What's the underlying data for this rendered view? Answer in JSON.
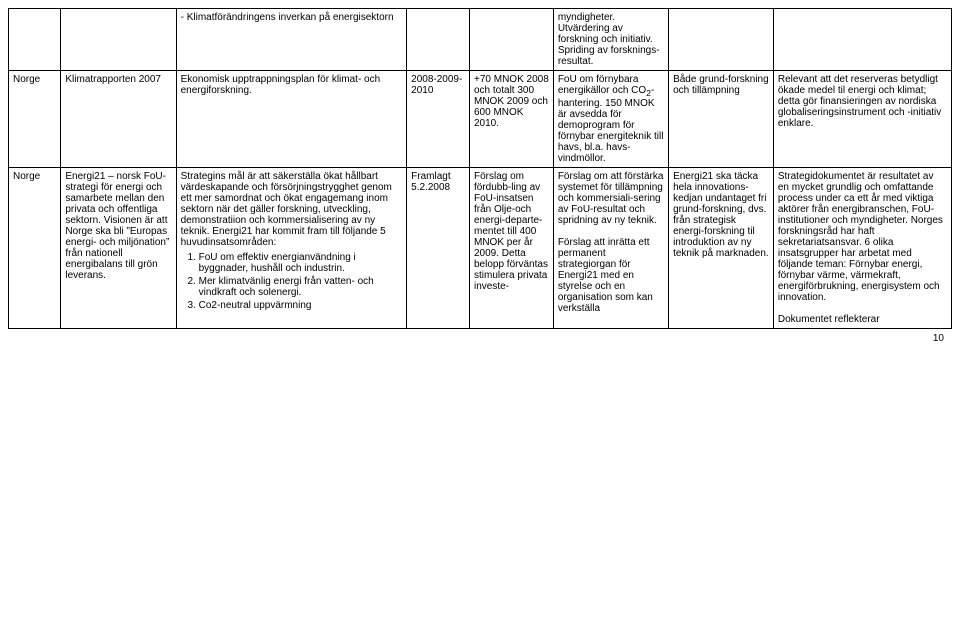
{
  "columns": {
    "c1_width": "5%",
    "c2_width": "11%",
    "c3_width": "22%",
    "c4_width": "6%",
    "c5_width": "8%",
    "c6_width": "11%",
    "c7_width": "10%",
    "c8_width": "17%"
  },
  "row0": {
    "c3": "- Klimatförändringens inverkan på energisektorn",
    "c6": "myndigheter. Utvärdering av forskning och initiativ. Spriding av forsknings-resultat."
  },
  "row1": {
    "c1": "Norge",
    "c2": "Klimatrapporten 2007",
    "c3": "Ekonomisk upptrappningsplan för klimat- och energiforskning.",
    "c4": "2008-2009-2010",
    "c5": "+70 MNOK 2008 och totalt 300 MNOK 2009 och 600 MNOK 2010.",
    "c6_html": "FoU om förnybara energikällor och CO<sub>2</sub>-hantering. 150 MNOK är avsedda för demoprogram för förnybar energiteknik till havs, bl.a. havs-vindmöllor.",
    "c7": "Både grund-forskning och tillämpning",
    "c8": "Relevant att det reserveras betydligt ökade medel til energi och klimat; detta gör finansieringen av nordiska globaliseringsinstrument och -initiativ enklare."
  },
  "row2": {
    "c1": "Norge",
    "c2": "Energi21 – norsk FoU-strategi för energi och samarbete mellan den privata och offentliga sektorn. Visionen är att Norge ska bli ”Europas energi- och miljönation” från nationell energibalans till grön leverans.",
    "c3_intro": "Strategins mål är att säkerställa ökat hållbart värdeskapande och försörjningstrygghet genom ett mer samordnat och ökat engagemang inom sektorn när det gäller forskning, utveckling, demonstratiion och kommersialisering av ny teknik. Energi21 har kommit fram till följande 5 huvudinsatsområden:",
    "c3_li1": "FoU om effektiv energianvändning i byggnader, hushåll och industrin.",
    "c3_li2": "Mer klimatvänlig energi från vatten- och vindkraft och solenergi.",
    "c3_li3": "Co2-neutral uppvärmning",
    "c4": "Framlagt 5.2.2008",
    "c5": "Förslag om fördubb-ling av FoU-insatsen från Olje-och energi-departe-mentet till 400 MNOK per år 2009. Detta belopp förväntas stimulera privata investe-",
    "c6": "Förslag om att förstärka systemet för tillämpning och kommersiali-sering av FoU-resultat och spridning av ny teknik.\n\nFörslag att inrätta ett permanent strategiorgan för Energi21 med en styrelse och en organisation som kan verkställa",
    "c7": "Energi21 ska täcka hela innovations-kedjan undantaget fri grund-forskning, dvs. från strategisk energi-forskning til introduktion av ny teknik på marknaden.",
    "c8": "Strategidokumentet är resultatet av en mycket grundlig och omfattande process under ca ett år med viktiga aktörer från energibranschen, FoU-institutioner och myndigheter. Norges forskningsråd har haft sekretariatsansvar. 6 olika insatsgrupper har arbetat med följande teman: Förnybar energi, förnybar värme, värmekraft, energiförbrukning, energisystem och innovation.\n\nDokumentet reflekterar"
  },
  "page_number": "10"
}
